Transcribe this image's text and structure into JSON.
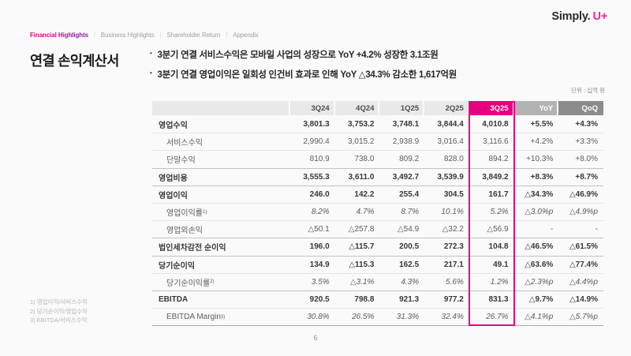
{
  "logo": {
    "simply": "Simply.",
    "uplus": "U+"
  },
  "nav": {
    "items": [
      {
        "label": "Financial Highlights",
        "active": true
      },
      {
        "label": "Business Highlights",
        "active": false
      },
      {
        "label": "Shareholder Return",
        "active": false
      },
      {
        "label": "Appendix",
        "active": false
      }
    ]
  },
  "page_title": "연결 손익계산서",
  "bullets": [
    "3분기 연결 서비스수익은 모바일 사업의 성장으로 YoY +4.2% 성장한 3.1조원",
    "3분기 연결 영업이익은 일회성 인건비 효과로 인해 YoY △34.3% 감소한 1,617억원"
  ],
  "unit_label": "단위 : 십억 원",
  "table": {
    "columns": [
      "",
      "3Q24",
      "4Q24",
      "1Q25",
      "2Q25",
      "3Q25",
      "YoY",
      "QoQ"
    ],
    "highlight_column": "3Q25",
    "rows": [
      {
        "label": "영업수익",
        "sup": "",
        "style": "bold",
        "values": [
          "3,801.3",
          "3,753.2",
          "3,748.1",
          "3,844.4",
          "4,010.8",
          "+5.5%",
          "+4.3%"
        ]
      },
      {
        "label": "서비스수익",
        "sup": "",
        "style": "sub",
        "values": [
          "2,990.4",
          "3,015.2",
          "2,938.9",
          "3,016.4",
          "3,116.6",
          "+4.2%",
          "+3.3%"
        ]
      },
      {
        "label": "단말수익",
        "sup": "",
        "style": "sub",
        "values": [
          "810.9",
          "738.0",
          "809.2",
          "828.0",
          "894.2",
          "+10.3%",
          "+8.0%"
        ]
      },
      {
        "label": "영업비용",
        "sup": "",
        "style": "bold section",
        "values": [
          "3,555.3",
          "3,611.0",
          "3,492.7",
          "3,539.9",
          "3,849.2",
          "+8.3%",
          "+8.7%"
        ]
      },
      {
        "label": "영업이익",
        "sup": "",
        "style": "bold section",
        "values": [
          "246.0",
          "142.2",
          "255.4",
          "304.5",
          "161.7",
          "△34.3%",
          "△46.9%"
        ]
      },
      {
        "label": "영업이익률",
        "sup": "1)",
        "style": "sub italic",
        "values": [
          "8.2%",
          "4.7%",
          "8.7%",
          "10.1%",
          "5.2%",
          "△3.0%p",
          "△4.9%p"
        ]
      },
      {
        "label": "영업외손익",
        "sup": "",
        "style": "sub",
        "values": [
          "△50.1",
          "△257.8",
          "△54.9",
          "△32.2",
          "△56.9",
          "-",
          "-"
        ]
      },
      {
        "label": "법인세차감전 순이익",
        "sup": "",
        "style": "bold section",
        "values": [
          "196.0",
          "△115.7",
          "200.5",
          "272.3",
          "104.8",
          "△46.5%",
          "△61.5%"
        ]
      },
      {
        "label": "당기순이익",
        "sup": "",
        "style": "bold section",
        "values": [
          "134.9",
          "△115.3",
          "162.5",
          "217.1",
          "49.1",
          "△63.6%",
          "△77.4%"
        ]
      },
      {
        "label": "당기순이익률",
        "sup": "2)",
        "style": "sub italic",
        "values": [
          "3.5%",
          "△3.1%",
          "4.3%",
          "5.6%",
          "1.2%",
          "△2.3%p",
          "△4.4%p"
        ]
      },
      {
        "label": "EBITDA",
        "sup": "",
        "style": "bold section",
        "values": [
          "920.5",
          "798.8",
          "921.3",
          "977.2",
          "831.3",
          "△9.7%",
          "△14.9%"
        ]
      },
      {
        "label": "EBITDA Margin",
        "sup": "3)",
        "style": "sub italic",
        "values": [
          "30.8%",
          "26.5%",
          "31.3%",
          "32.4%",
          "26.7%",
          "△4.1%p",
          "△5.7%p"
        ]
      }
    ]
  },
  "footnotes": [
    "1) 영업이익/서비스수익",
    "2) 당기순이익/영업수익",
    "3) EBITDA/서비스수익"
  ],
  "page_number": "6",
  "colors": {
    "accent": "#e6007e",
    "quarter_header_bg": "#e9e9e9",
    "yoy_header_bg": "#b3b3b3",
    "qoq_header_bg": "#8c8c8c"
  }
}
